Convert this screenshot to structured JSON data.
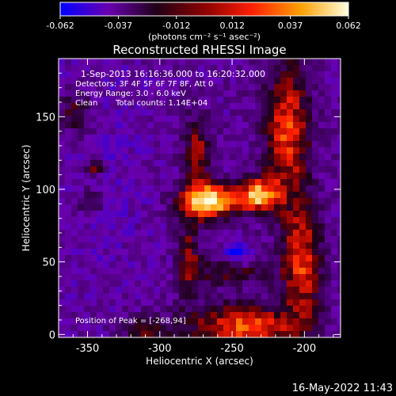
{
  "colorbar": {
    "min_label": "-0.062",
    "ticks": [
      "-0.062",
      "-0.037",
      "-0.012",
      "0.012",
      "0.037",
      "0.062"
    ],
    "tick_values": [
      -0.062,
      -0.037,
      -0.012,
      0.012,
      0.037,
      0.062
    ],
    "range": [
      -0.062,
      0.062
    ],
    "unit_label": "(photons cm⁻² s⁻¹ asec⁻²)",
    "colors": [
      "#0000ff",
      "#6a00b0",
      "#200018",
      "#8a0000",
      "#ff2000",
      "#ffa000",
      "#ffffe0"
    ]
  },
  "chart_data": {
    "type": "heatmap",
    "title": "Reconstructed RHESSI Image",
    "xlabel": "Heliocentric X (arcsec)",
    "ylabel": "Heliocentric Y (arcsec)",
    "xlim": [
      -370,
      -175
    ],
    "ylim": [
      -2,
      190
    ],
    "xticks": [
      -350,
      -300,
      -250,
      -200
    ],
    "yticks": [
      0,
      50,
      100,
      150
    ],
    "xtick_labels": [
      "-350",
      "-300",
      "-250",
      "-200"
    ],
    "ytick_labels": [
      "0",
      "50",
      "100",
      "150"
    ],
    "peak_position": [
      -268,
      94
    ],
    "annotations": {
      "time_range": "1-Sep-2013 16:16:36.000 to 16:20:32.000",
      "detectors": "Detectors: 3F 4F 5F 6F 7F 8F, Att 0",
      "energy": "Energy Range: 3.0 - 6.0 keV",
      "clean": "Clean",
      "total_counts": "Total counts: 1.14E+04",
      "peak": "Position of Peak = [-268,94]"
    }
  },
  "footer": {
    "timestamp": "16-May-2022 11:43"
  }
}
